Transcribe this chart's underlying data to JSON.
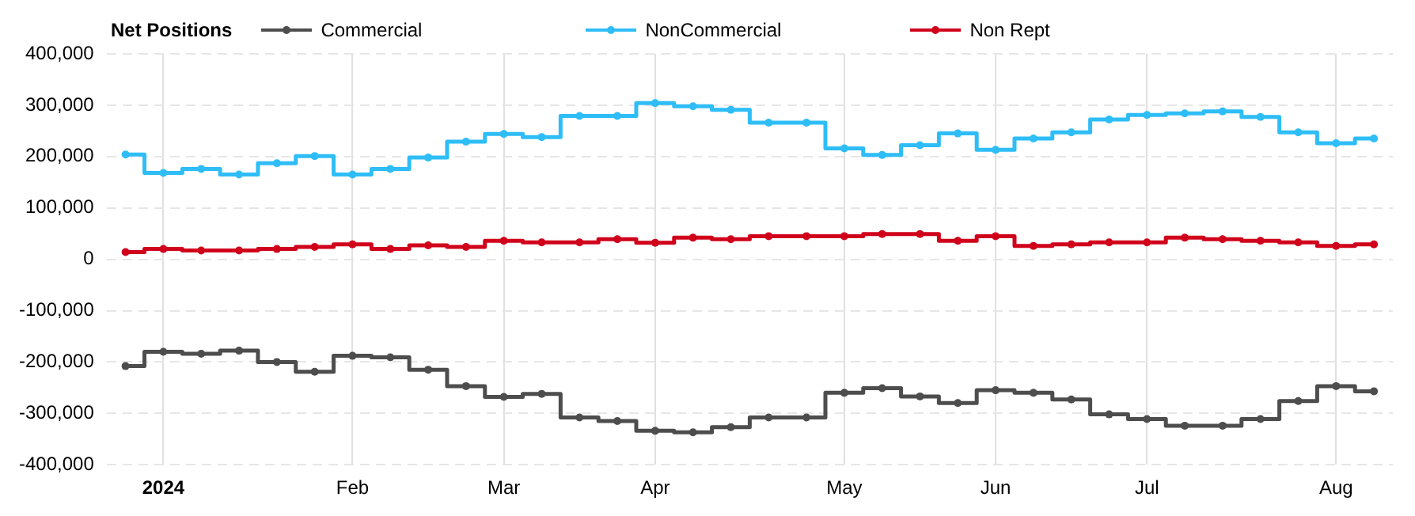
{
  "chart_data": {
    "type": "step",
    "legend_title": "Net Positions",
    "legend": "top left",
    "grid": true,
    "marker": "circle",
    "categories": [
      null,
      "2024",
      null,
      null,
      null,
      null,
      "Feb",
      null,
      null,
      null,
      "Mar",
      null,
      null,
      null,
      "Apr",
      null,
      null,
      null,
      null,
      "May",
      null,
      null,
      null,
      "Jun",
      null,
      null,
      null,
      "Jul",
      null,
      null,
      null,
      null,
      "Aug",
      null
    ],
    "ylim": [
      -400000,
      400000
    ],
    "yticks": [
      {
        "value": -400000,
        "label": "-400,000"
      },
      {
        "value": -300000,
        "label": "-300,000"
      },
      {
        "value": -200000,
        "label": "-200,000"
      },
      {
        "value": -100000,
        "label": "-100,000"
      },
      {
        "value": 0,
        "label": "0"
      },
      {
        "value": 100000,
        "label": "100,000"
      },
      {
        "value": 200000,
        "label": "200,000"
      },
      {
        "value": 300000,
        "label": "300,000"
      },
      {
        "value": 400000,
        "label": "400,000"
      }
    ],
    "series": [
      {
        "name": "Commercial",
        "color": "#4d4d4d",
        "values": [
          -208000,
          -180000,
          -184000,
          -178000,
          -200000,
          -219000,
          -188000,
          -191000,
          -215000,
          -247000,
          -268000,
          -262000,
          -308000,
          -315000,
          -334000,
          -337000,
          -327000,
          -308000,
          -308000,
          -260000,
          -251000,
          -267000,
          -280000,
          -255000,
          -260000,
          -273000,
          -302000,
          -311000,
          -324000,
          -324000,
          -311000,
          -276000,
          -247000,
          -257000
        ]
      },
      {
        "name": "NonCommercial",
        "color": "#2ebdf7",
        "values": [
          204000,
          168000,
          176000,
          165000,
          187000,
          201000,
          165000,
          176000,
          198000,
          229000,
          244000,
          238000,
          279000,
          279000,
          304000,
          298000,
          291000,
          266000,
          266000,
          216000,
          203000,
          222000,
          245000,
          213000,
          235000,
          247000,
          272000,
          281000,
          284000,
          288000,
          277000,
          247000,
          226000,
          235000
        ]
      },
      {
        "name": "Non Rept",
        "color": "#d0021b",
        "values": [
          14000,
          20000,
          17000,
          17000,
          20000,
          24000,
          29000,
          20000,
          27000,
          24000,
          36000,
          33000,
          33000,
          39000,
          32000,
          42000,
          39000,
          45000,
          45000,
          45000,
          49000,
          49000,
          36000,
          45000,
          26000,
          29000,
          33000,
          33000,
          42000,
          39000,
          36000,
          33000,
          26000,
          29000
        ]
      }
    ]
  }
}
